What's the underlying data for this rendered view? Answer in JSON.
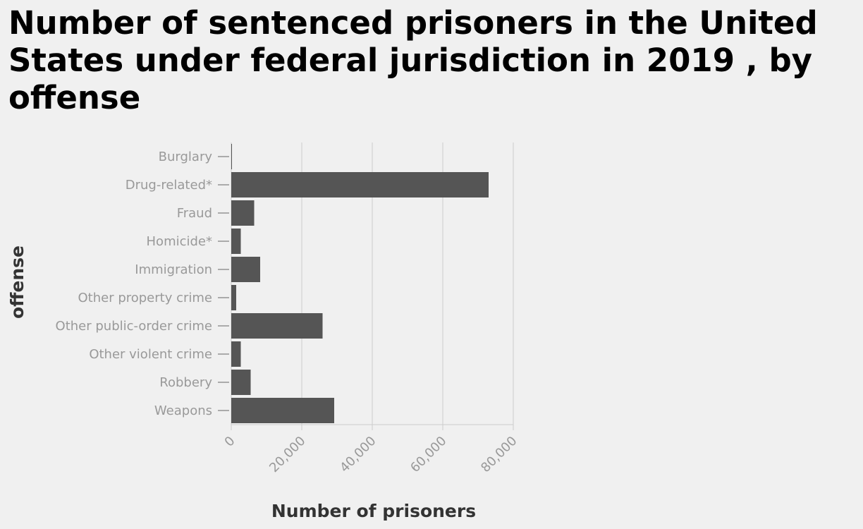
{
  "chart_data": {
    "type": "bar",
    "orientation": "horizontal",
    "title": "Number of sentenced prisoners in the United States under federal jurisdiction in 2019 , by offense",
    "xlabel": "Number of prisoners",
    "ylabel": "offense",
    "categories": [
      "Burglary",
      "Drug-related*",
      "Fraud",
      "Homicide*",
      "Immigration",
      "Other property crime",
      "Other public-order crime",
      "Other violent crime",
      "Robbery",
      "Weapons"
    ],
    "values": [
      200,
      73000,
      6500,
      2700,
      8200,
      1400,
      25900,
      2700,
      5500,
      29200
    ],
    "xlim": [
      0,
      80000
    ],
    "xticks": [
      0,
      20000,
      40000,
      60000,
      80000
    ],
    "xtick_labels": [
      "0",
      "20,000",
      "40,000",
      "60,000",
      "80,000"
    ],
    "grid": "vertical",
    "legend": "none",
    "colors": {
      "bar": "#555555",
      "grid": "#cccccc",
      "tick_text": "#999999",
      "background": "#f0f0f0"
    }
  }
}
